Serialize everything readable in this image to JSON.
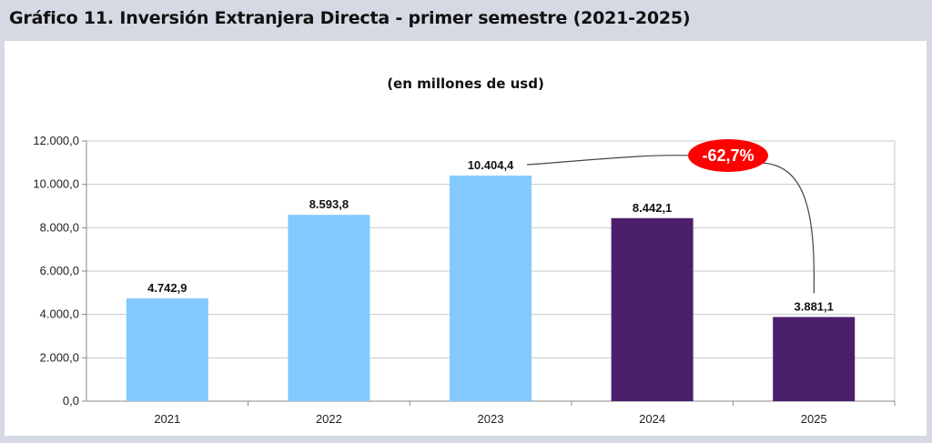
{
  "header": {
    "title": "Gráfico 11. Inversión Extranjera Directa - primer semestre (2021-2025)"
  },
  "chart_data": {
    "type": "bar",
    "title": "Gráfico 11. Inversión Extranjera Directa - primer semestre (2021-2025)",
    "subtitle": "(en millones de usd)",
    "categories": [
      "2021",
      "2022",
      "2023",
      "2024",
      "2025"
    ],
    "values": [
      4742.9,
      8593.8,
      10404.4,
      8442.1,
      3881.1
    ],
    "value_labels": [
      "4.742,9",
      "8.593,8",
      "10.404,4",
      "8.442,1",
      "3.881,1"
    ],
    "bar_colors": [
      "#82caff",
      "#82caff",
      "#82caff",
      "#4b1f6b",
      "#4b1f6b"
    ],
    "ylim": [
      0,
      12000
    ],
    "yticks": [
      0,
      2000,
      4000,
      6000,
      8000,
      10000,
      12000
    ],
    "ytick_labels": [
      "0,0",
      "2.000,0",
      "4.000,0",
      "6.000,0",
      "8.000,0",
      "10.000,0",
      "12.000,0"
    ],
    "grid": true,
    "annotation": {
      "text": "-62,7%",
      "from_category": "2023",
      "to_category": "2025",
      "color": "#ff0000"
    }
  }
}
